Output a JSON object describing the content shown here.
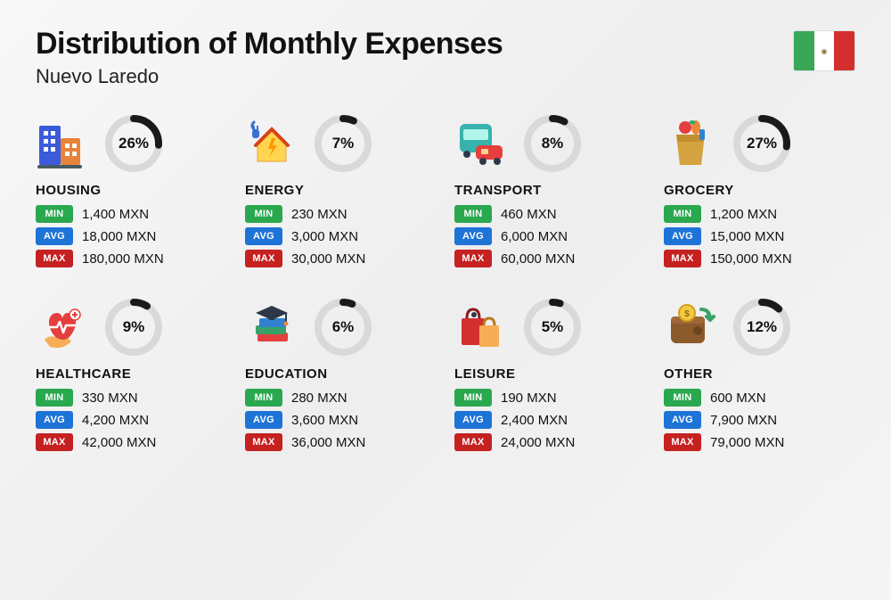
{
  "title": "Distribution of Monthly Expenses",
  "subtitle": "Nuevo Laredo",
  "flag_colors": {
    "green": "#3aa757",
    "white": "#ffffff",
    "red": "#d32f2f"
  },
  "currency": "MXN",
  "labels": {
    "min": "MIN",
    "avg": "AVG",
    "max": "MAX"
  },
  "tag_colors": {
    "min": "#2aa84f",
    "avg": "#1e73d6",
    "max": "#c62121"
  },
  "donut": {
    "bg": "#d9d9d9",
    "fg": "#1a1a1a",
    "stroke_width": 8,
    "radius": 28
  },
  "background_color": "#f3f3f3",
  "text_color": "#111111",
  "categories": [
    {
      "key": "housing",
      "title": "HOUSING",
      "pct": 26,
      "min": "1,400 MXN",
      "avg": "18,000 MXN",
      "max": "180,000 MXN"
    },
    {
      "key": "energy",
      "title": "ENERGY",
      "pct": 7,
      "min": "230 MXN",
      "avg": "3,000 MXN",
      "max": "30,000 MXN"
    },
    {
      "key": "transport",
      "title": "TRANSPORT",
      "pct": 8,
      "min": "460 MXN",
      "avg": "6,000 MXN",
      "max": "60,000 MXN"
    },
    {
      "key": "grocery",
      "title": "GROCERY",
      "pct": 27,
      "min": "1,200 MXN",
      "avg": "15,000 MXN",
      "max": "150,000 MXN"
    },
    {
      "key": "healthcare",
      "title": "HEALTHCARE",
      "pct": 9,
      "min": "330 MXN",
      "avg": "4,200 MXN",
      "max": "42,000 MXN"
    },
    {
      "key": "education",
      "title": "EDUCATION",
      "pct": 6,
      "min": "280 MXN",
      "avg": "3,600 MXN",
      "max": "36,000 MXN"
    },
    {
      "key": "leisure",
      "title": "LEISURE",
      "pct": 5,
      "min": "190 MXN",
      "avg": "2,400 MXN",
      "max": "24,000 MXN"
    },
    {
      "key": "other",
      "title": "OTHER",
      "pct": 12,
      "min": "600 MXN",
      "avg": "7,900 MXN",
      "max": "79,000 MXN"
    }
  ],
  "icons": {
    "housing": {
      "name": "buildings-icon"
    },
    "energy": {
      "name": "house-energy-icon"
    },
    "transport": {
      "name": "bus-car-icon"
    },
    "grocery": {
      "name": "grocery-bag-icon"
    },
    "healthcare": {
      "name": "heart-hand-icon"
    },
    "education": {
      "name": "books-cap-icon"
    },
    "leisure": {
      "name": "shopping-bags-icon"
    },
    "other": {
      "name": "wallet-arrow-icon"
    }
  }
}
